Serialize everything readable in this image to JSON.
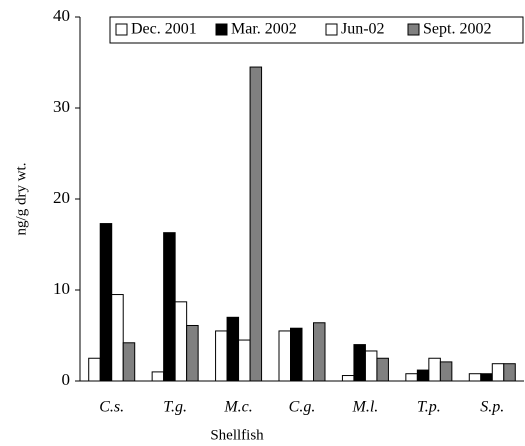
{
  "chart_data": {
    "type": "bar",
    "x_label": "Shellfish",
    "y_label": "ng/g dry wt.",
    "categories": [
      "C.s.",
      "T.g.",
      "M.c.",
      "C.g.",
      "M.l.",
      "T.p.",
      "S.p."
    ],
    "series": [
      {
        "name": "Dec. 2001",
        "color": "#ffffff",
        "values": [
          2.5,
          1.0,
          5.5,
          5.5,
          0.6,
          0.8,
          0.8
        ]
      },
      {
        "name": "Mar. 2002",
        "color": "#000000",
        "values": [
          17.3,
          16.3,
          7.0,
          5.8,
          4.0,
          1.2,
          0.8
        ]
      },
      {
        "name": "Jun-02",
        "color": "#ffffff",
        "values": [
          9.5,
          8.7,
          4.5,
          null,
          3.3,
          2.5,
          1.9
        ]
      },
      {
        "name": "Sept. 2002",
        "color": "#808080",
        "values": [
          4.2,
          6.1,
          34.5,
          6.4,
          2.5,
          2.1,
          1.9
        ]
      }
    ],
    "ylim": [
      0,
      40
    ],
    "yticks": [
      0,
      10,
      20,
      30,
      40
    ],
    "legend": "top"
  }
}
